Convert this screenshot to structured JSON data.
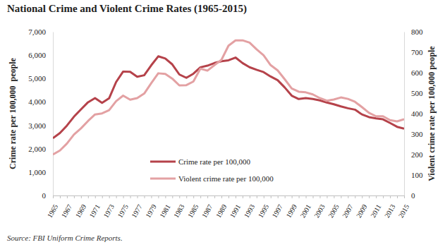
{
  "chart_data": {
    "type": "line",
    "title": "National Crime and Violent Crime Rates (1965-2015)",
    "y_label": "Crime rate per 100,000  people",
    "y2_label": "Violent crime rate per 100,000 people",
    "source": "Source: FBI Uniform Crime Reports.",
    "categories": [
      "1965",
      null,
      "1967",
      null,
      "1969",
      null,
      "1971",
      null,
      "1973",
      null,
      "1975",
      null,
      "1977",
      null,
      "1979",
      null,
      "1981",
      null,
      "1983",
      null,
      "1985",
      null,
      "1987",
      null,
      "1989",
      null,
      "1991",
      null,
      "1993",
      null,
      "1995",
      null,
      "1997",
      null,
      "1999",
      null,
      "2001",
      null,
      "2003",
      null,
      "2005",
      null,
      "2007",
      null,
      "2009",
      null,
      "2011",
      null,
      "2013",
      null,
      "2015"
    ],
    "series": [
      {
        "name": "Crime rate per 100,000",
        "color": "#b5424a",
        "axis": "y",
        "values": [
          2449,
          2670,
          2990,
          3370,
          3680,
          3985,
          4165,
          3961,
          4154,
          4850,
          5299,
          5287,
          5078,
          5140,
          5566,
          5950,
          5858,
          5604,
          5175,
          5031,
          5207,
          5480,
          5550,
          5664,
          5741,
          5780,
          5898,
          5660,
          5484,
          5374,
          5275,
          5087,
          4930,
          4620,
          4267,
          4125,
          4163,
          4125,
          4067,
          3977,
          3900,
          3808,
          3730,
          3670,
          3466,
          3350,
          3296,
          3256,
          3099,
          2936,
          2860
        ]
      },
      {
        "name": "Violent crime rate per 100,000",
        "color": "#e3a1a3",
        "axis": "y2",
        "values": [
          200,
          220,
          254,
          298,
          328,
          364,
          396,
          401,
          417,
          461,
          488,
          468,
          476,
          498,
          549,
          597,
          594,
          571,
          538,
          539,
          557,
          620,
          610,
          637,
          663,
          732,
          758,
          758,
          747,
          714,
          685,
          637,
          611,
          568,
          523,
          507,
          504,
          494,
          476,
          463,
          469,
          479,
          472,
          458,
          432,
          404,
          387,
          387,
          368,
          362,
          373
        ]
      }
    ],
    "ylim": [
      0,
      7000
    ],
    "yticks": [
      0,
      {
        "value": 1000,
        "label": "1,000"
      },
      {
        "value": 2000,
        "label": "2,000"
      },
      {
        "value": 3000,
        "label": "3,000"
      },
      {
        "value": 4000,
        "label": "4,000"
      },
      {
        "value": 5000,
        "label": "5,000"
      },
      {
        "value": 6000,
        "label": "6,000"
      },
      {
        "value": 7000,
        "label": "7,000"
      }
    ],
    "y2lim": [
      0,
      800
    ],
    "y2ticks": [
      0,
      100,
      200,
      300,
      400,
      500,
      600,
      700,
      800
    ],
    "grid": false,
    "legend": "bottom"
  }
}
